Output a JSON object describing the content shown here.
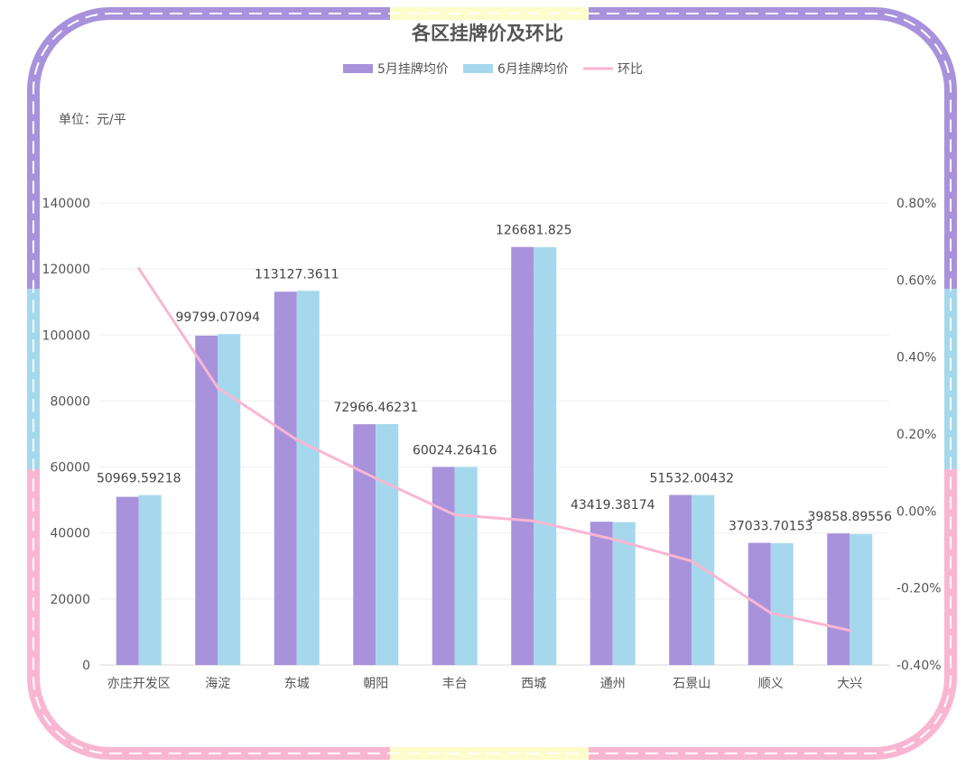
{
  "chart_data": {
    "type": "bar",
    "title": "各区挂牌价及环比",
    "unit_label": "单位：元/平",
    "categories": [
      "亦庄开发区",
      "海淀",
      "东城",
      "朝阳",
      "丰台",
      "西城",
      "通州",
      "石景山",
      "顺义",
      "大兴"
    ],
    "series": [
      {
        "name": "5月挂牌均价",
        "type": "bar",
        "axis": "left",
        "color": "#a992dc",
        "values": [
          50969.59218,
          99799.07094,
          113127.3611,
          72966.46231,
          60024.26416,
          126681.825,
          43419.38174,
          51532.00432,
          37033.70153,
          39858.89556
        ],
        "labels": [
          "50969.59218",
          "99799.07094",
          "113127.3611",
          "72966.46231",
          "60024.26416",
          "126681.825",
          "43419.38174",
          "51532.00432",
          "37033.70153",
          "39858.89556"
        ]
      },
      {
        "name": "6月挂牌均价",
        "type": "bar",
        "axis": "left",
        "color": "#a5d8ec",
        "values": [
          51500,
          100300,
          113400,
          73000,
          60000,
          126600,
          43300,
          51500,
          36900,
          39700
        ]
      },
      {
        "name": "环比",
        "type": "line",
        "axis": "right",
        "color": "#f9b6d2",
        "values": [
          0.63,
          0.32,
          0.185,
          0.085,
          -0.01,
          -0.026,
          -0.073,
          -0.13,
          -0.265,
          -0.31
        ]
      }
    ],
    "left_axis": {
      "min": 0,
      "max": 140000,
      "ticks": [
        "0",
        "20000",
        "40000",
        "60000",
        "80000",
        "100000",
        "120000",
        "140000"
      ]
    },
    "right_axis": {
      "min": -0.4,
      "max": 0.8,
      "unit": "%",
      "ticks": [
        "-0.40%",
        "-0.20%",
        "0.00%",
        "0.20%",
        "0.40%",
        "0.60%",
        "0.80%"
      ]
    },
    "grid": true,
    "legend_position": "top"
  },
  "frame_colors": {
    "purple": "#a992dc",
    "blue": "#a5d8ec",
    "pink": "#f9b6d2",
    "yellow": "#fdfccb"
  }
}
